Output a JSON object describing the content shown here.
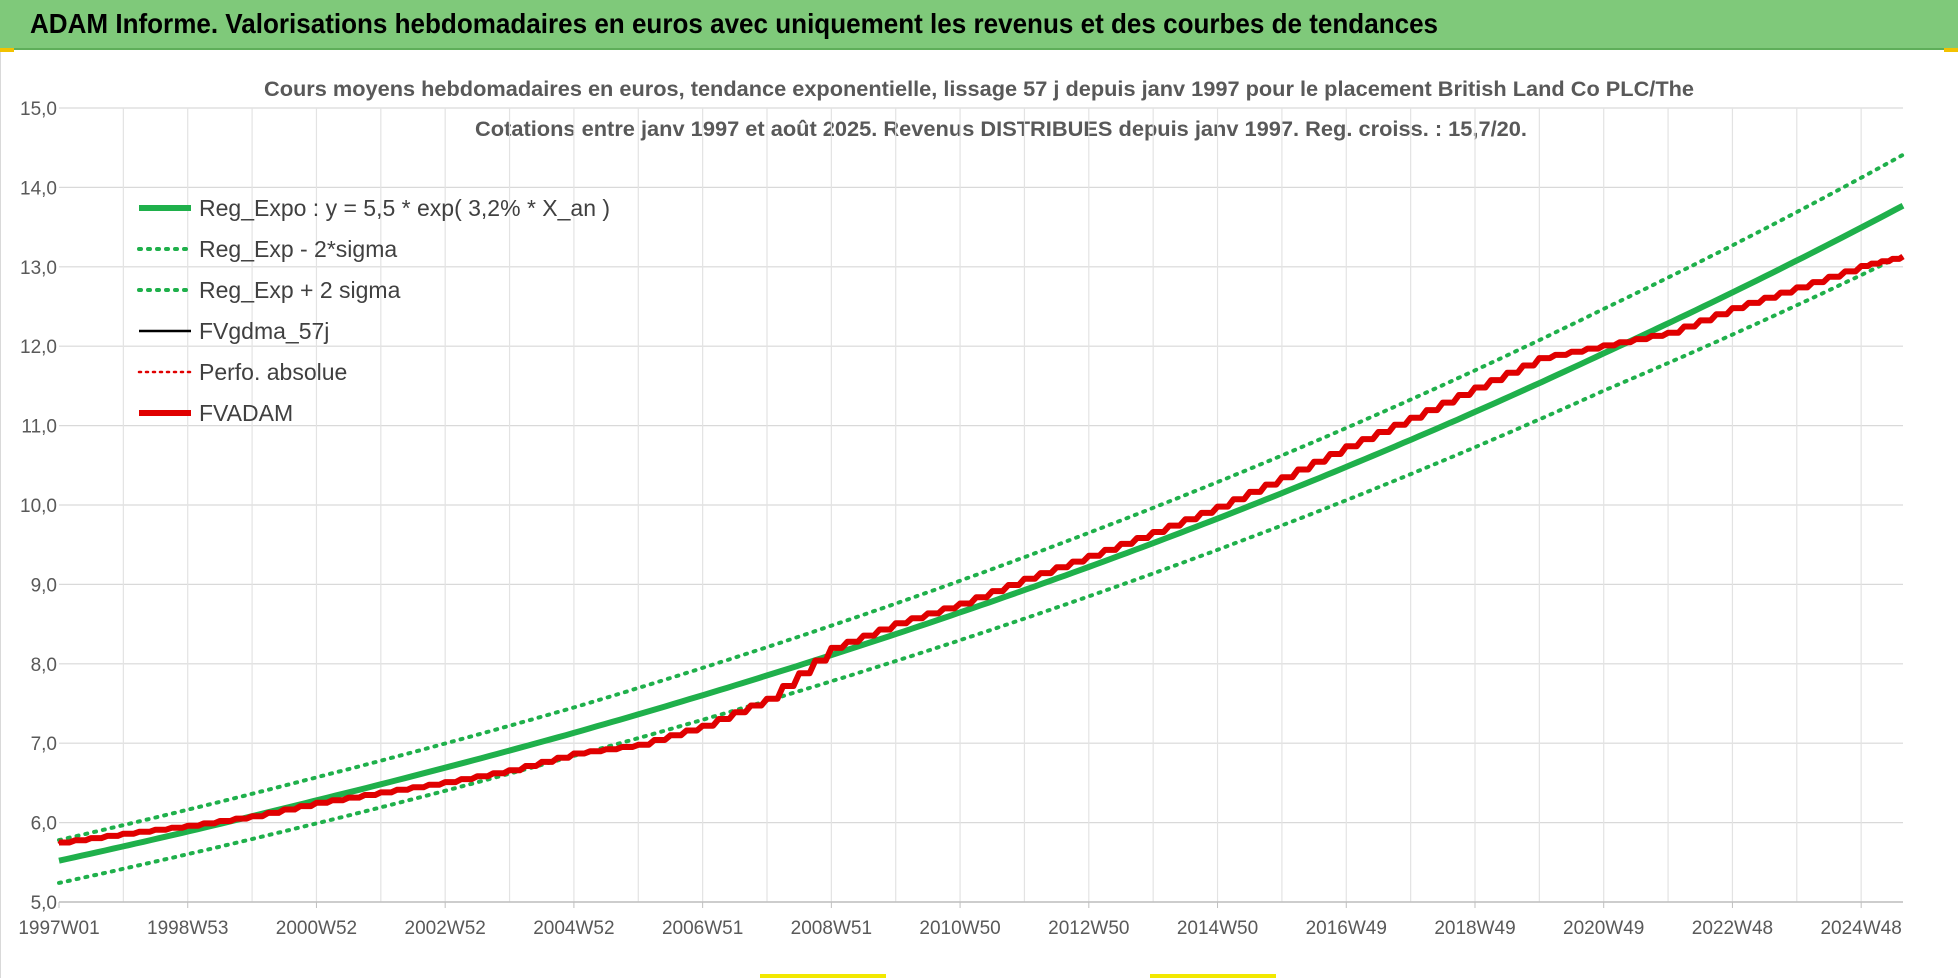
{
  "header": {
    "title": "ADAM Informe. Valorisations hebdomadaires en euros avec uniquement les revenus et des courbes de tendances"
  },
  "chart_data": {
    "type": "line",
    "title": "Cours moyens hebdomadaires en euros, tendance exponentielle, lissage 57 j depuis janv 1997 pour le placement British Land Co PLC/The",
    "subtitle": "Cotations entre janv 1997 et août 2025.  Revenus DISTRIBUES depuis janv 1997. Reg. croiss. : 15,7/20.",
    "xlabel": "",
    "ylabel": "",
    "ylim": [
      5.0,
      15.0
    ],
    "xlim": [
      1997.0,
      2025.65
    ],
    "yticks": [
      "5,0",
      "6,0",
      "7,0",
      "8,0",
      "9,0",
      "10,0",
      "11,0",
      "12,0",
      "13,0",
      "14,0",
      "15,0"
    ],
    "xticks": [
      {
        "label": "1997W01",
        "t": 1997.0
      },
      {
        "label": "1998W53",
        "t": 1999.0
      },
      {
        "label": "2000W52",
        "t": 2001.0
      },
      {
        "label": "2002W52",
        "t": 2003.0
      },
      {
        "label": "2004W52",
        "t": 2005.0
      },
      {
        "label": "2006W51",
        "t": 2007.0
      },
      {
        "label": "2008W51",
        "t": 2009.0
      },
      {
        "label": "2010W50",
        "t": 2011.0
      },
      {
        "label": "2012W50",
        "t": 2013.0
      },
      {
        "label": "2014W50",
        "t": 2015.0
      },
      {
        "label": "2016W49",
        "t": 2017.0
      },
      {
        "label": "2018W49",
        "t": 2019.0
      },
      {
        "label": "2020W49",
        "t": 2021.0
      },
      {
        "label": "2022W48",
        "t": 2023.0
      },
      {
        "label": "2024W48",
        "t": 2025.0
      }
    ],
    "grid": true,
    "legend_position": "top-left",
    "series": [
      {
        "name": "Reg_Expo : y = 5,5 * exp( 3,2% *  X_an )",
        "color": "#1fb04b",
        "style": "solid",
        "x": [
          1997.0,
          2001.0,
          2005.0,
          2009.0,
          2013.0,
          2017.0,
          2021.0,
          2025.65
        ],
        "values": [
          5.52,
          6.28,
          7.13,
          8.11,
          9.22,
          10.48,
          11.91,
          13.77
        ]
      },
      {
        "name": "Reg_Exp - 2*sigma",
        "color": "#1fb04b",
        "style": "dotted",
        "x": [
          1997.0,
          2001.0,
          2005.0,
          2009.0,
          2013.0,
          2017.0,
          2021.0,
          2025.65
        ],
        "values": [
          5.24,
          5.99,
          6.84,
          7.78,
          8.85,
          10.06,
          11.44,
          13.15
        ]
      },
      {
        "name": "Reg_Exp + 2 sigma",
        "color": "#1fb04b",
        "style": "dotted",
        "x": [
          1997.0,
          2001.0,
          2005.0,
          2009.0,
          2013.0,
          2017.0,
          2021.0,
          2025.65
        ],
        "values": [
          5.78,
          6.57,
          7.45,
          8.48,
          9.65,
          10.97,
          12.47,
          14.41
        ]
      },
      {
        "name": "FVgdma_57j",
        "color": "#000000",
        "style": "solid",
        "x": [
          1997.0,
          1998.0,
          1999.0,
          2000.0,
          2001.0,
          2002.0,
          2003.0,
          2004.0,
          2005.0,
          2006.0,
          2007.0,
          2008.0,
          2009.0,
          2010.0,
          2011.0,
          2012.0,
          2013.0,
          2014.0,
          2015.0,
          2016.0,
          2017.0,
          2018.0,
          2019.0,
          2020.0,
          2021.0,
          2022.0,
          2023.0,
          2024.0,
          2025.0,
          2025.65
        ],
        "values": [
          5.75,
          5.86,
          5.96,
          6.08,
          6.25,
          6.38,
          6.51,
          6.66,
          6.87,
          6.98,
          7.22,
          7.56,
          8.2,
          8.51,
          8.76,
          9.07,
          9.36,
          9.66,
          9.98,
          10.35,
          10.74,
          11.1,
          11.48,
          11.85,
          12.01,
          12.17,
          12.48,
          12.74,
          13.01,
          13.13
        ]
      },
      {
        "name": "Perfo. absolue",
        "color": "#e00000",
        "style": "dotted",
        "x": [
          1997.0,
          1998.0,
          1999.0,
          2000.0,
          2001.0,
          2002.0,
          2003.0,
          2004.0,
          2005.0,
          2006.0,
          2007.0,
          2008.0,
          2009.0,
          2010.0,
          2011.0,
          2012.0,
          2013.0,
          2014.0,
          2015.0,
          2016.0,
          2017.0,
          2018.0,
          2019.0,
          2020.0,
          2021.0,
          2022.0,
          2023.0,
          2024.0,
          2025.0,
          2025.65
        ],
        "values": [
          5.75,
          5.86,
          5.96,
          6.08,
          6.25,
          6.38,
          6.51,
          6.66,
          6.87,
          6.98,
          7.22,
          7.56,
          8.2,
          8.51,
          8.76,
          9.07,
          9.36,
          9.66,
          9.98,
          10.35,
          10.74,
          11.1,
          11.48,
          11.85,
          12.01,
          12.17,
          12.48,
          12.74,
          13.01,
          13.13
        ]
      },
      {
        "name": "FVADAM",
        "color": "#e00000",
        "style": "solid",
        "x": [
          1997.0,
          1998.0,
          1999.0,
          2000.0,
          2001.0,
          2002.0,
          2003.0,
          2004.0,
          2005.0,
          2006.0,
          2007.0,
          2008.0,
          2009.0,
          2010.0,
          2011.0,
          2012.0,
          2013.0,
          2014.0,
          2015.0,
          2016.0,
          2017.0,
          2018.0,
          2019.0,
          2020.0,
          2021.0,
          2022.0,
          2023.0,
          2024.0,
          2025.0,
          2025.65
        ],
        "values": [
          5.75,
          5.86,
          5.96,
          6.08,
          6.25,
          6.38,
          6.51,
          6.66,
          6.87,
          6.98,
          7.22,
          7.56,
          8.2,
          8.51,
          8.76,
          9.07,
          9.36,
          9.66,
          9.98,
          10.35,
          10.74,
          11.1,
          11.48,
          11.85,
          12.01,
          12.17,
          12.48,
          12.74,
          13.01,
          13.13
        ]
      }
    ]
  }
}
